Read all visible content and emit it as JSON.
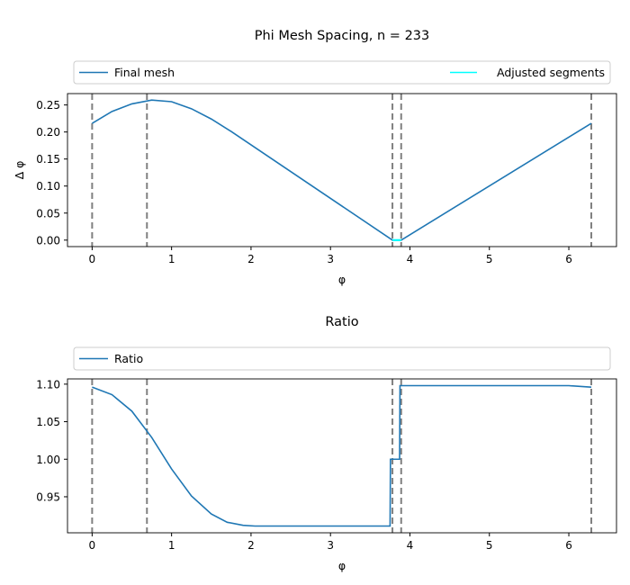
{
  "chart_data": [
    {
      "type": "line",
      "title": "Phi Mesh Spacing, n = 233",
      "xlabel": "φ",
      "ylabel": "Δ φ",
      "xlim": [
        -0.31,
        6.6
      ],
      "ylim": [
        -0.012,
        0.271
      ],
      "xticks": [
        0,
        1,
        2,
        3,
        4,
        5,
        6
      ],
      "yticks": [
        0.0,
        0.05,
        0.1,
        0.15,
        0.2,
        0.25
      ],
      "ytick_labels": [
        "0.00",
        "0.05",
        "0.10",
        "0.15",
        "0.20",
        "0.25"
      ],
      "legend": "top, expanded above axes",
      "grid": false,
      "vlines": [
        0,
        0.69,
        3.78,
        3.89,
        6.283
      ],
      "series": [
        {
          "name": "Final mesh",
          "color": "#1f77b4",
          "x": [
            0,
            0.25,
            0.5,
            0.75,
            1.0,
            1.25,
            1.5,
            1.75,
            3.78,
            3.89,
            6.283
          ],
          "y": [
            0.216,
            0.238,
            0.252,
            0.259,
            0.256,
            0.243,
            0.224,
            0.201,
            0.0,
            0.0,
            0.216
          ]
        },
        {
          "name": "Adjusted segments",
          "color": "#00ffff",
          "x": [
            3.78,
            3.89
          ],
          "y": [
            0.0,
            0.0
          ]
        }
      ]
    },
    {
      "type": "line",
      "title": "Ratio",
      "xlabel": "φ",
      "ylabel": "",
      "xlim": [
        -0.31,
        6.6
      ],
      "ylim": [
        0.902,
        1.107
      ],
      "xticks": [
        0,
        1,
        2,
        3,
        4,
        5,
        6
      ],
      "yticks": [
        0.95,
        1.0,
        1.05,
        1.1
      ],
      "ytick_labels": [
        "0.95",
        "1.00",
        "1.05",
        "1.10"
      ],
      "legend": "top, expanded above axes",
      "grid": false,
      "vlines": [
        0,
        0.69,
        3.78,
        3.89,
        6.283
      ],
      "series": [
        {
          "name": "Ratio",
          "color": "#1f77b4",
          "x": [
            0,
            0.25,
            0.5,
            0.75,
            1.0,
            1.25,
            1.5,
            1.7,
            1.9,
            2.05,
            3.75,
            3.755,
            3.87,
            3.875,
            6.0,
            6.283
          ],
          "y": [
            1.096,
            1.086,
            1.064,
            1.029,
            0.987,
            0.951,
            0.927,
            0.916,
            0.912,
            0.911,
            0.911,
            1.0,
            1.0,
            1.098,
            1.098,
            1.096
          ]
        }
      ]
    }
  ]
}
